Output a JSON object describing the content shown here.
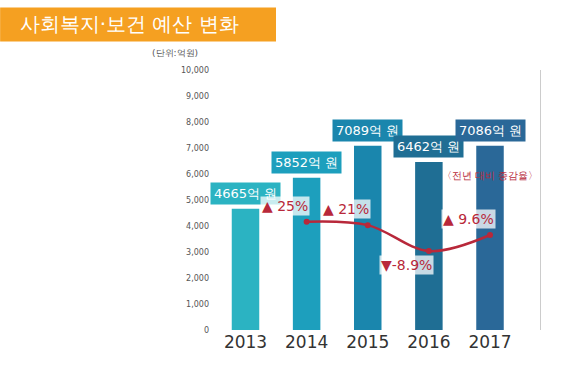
{
  "chart_data": {
    "type": "bar",
    "title": "사회복지·보건 예산 변화",
    "y_label": "(단위:억원)",
    "categories": [
      "2013",
      "2014",
      "2015",
      "2016",
      "2017"
    ],
    "values": [
      4665,
      5852,
      7089,
      6462,
      7086
    ],
    "value_labels": [
      "4665억 원",
      "5852억 원",
      "7089억 원",
      "6462억 원",
      "7086억 원"
    ],
    "colors": [
      "#2bb3c2",
      "#1d9fbd",
      "#1a86ad",
      "#1f6e94",
      "#2a6898"
    ],
    "data_labels": true,
    "grid": false,
    "legend": "none",
    "ylim": [
      0,
      10000
    ],
    "yticks": [
      0,
      {
        "value": 1000,
        "label": "1,000"
      },
      {
        "value": 2000,
        "label": "2,000"
      },
      {
        "value": 3000,
        "label": "3,000"
      },
      {
        "value": 4000,
        "label": "4,000"
      },
      {
        "value": 5000,
        "label": "5,000"
      },
      {
        "value": 6000,
        "label": "6,000"
      },
      {
        "value": 7000,
        "label": "7,000"
      },
      {
        "value": 8000,
        "label": "8,000"
      },
      {
        "value": 9000,
        "label": "9,000"
      },
      {
        "value": 10000,
        "label": "10,000"
      }
    ],
    "y2lim": [
      -100,
      200
    ],
    "y2ticks": [],
    "series": [
      {
        "name": "〈전년 대비 증감율〉",
        "type": "line",
        "axis": "y2",
        "color": "#b8283a",
        "marker": "circle",
        "line_style": "solid",
        "values": [
          null,
          25,
          21,
          -8.9,
          9.6
        ],
        "value_labels": [
          null,
          "▲ 25%",
          "▲ 21%",
          "▼-8.9%",
          "▲ 9.6%"
        ]
      }
    ]
  }
}
